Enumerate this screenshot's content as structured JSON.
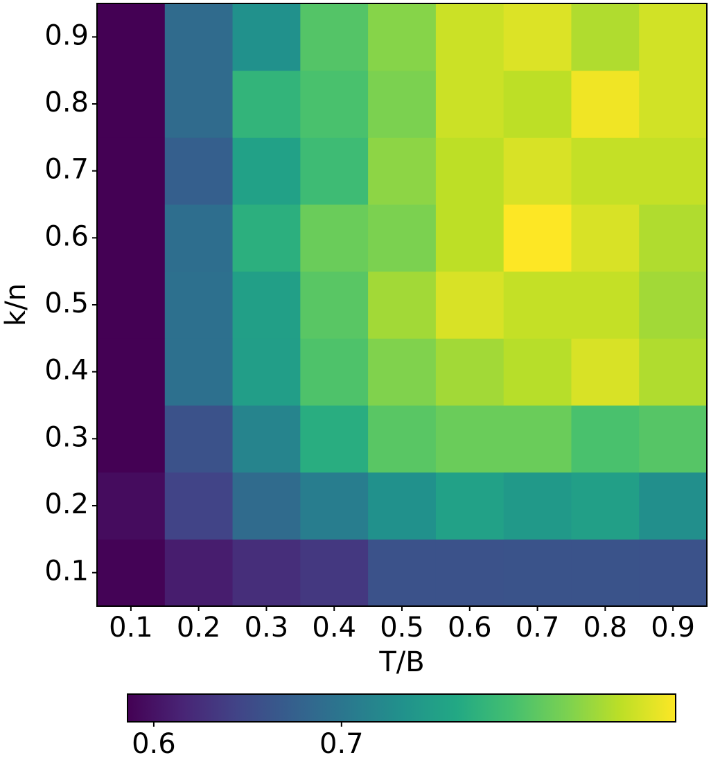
{
  "chart_data": {
    "type": "heatmap",
    "x_label": "T/B",
    "y_label": "k/n",
    "x": [
      0.1,
      0.2,
      0.3,
      0.4,
      0.5,
      0.6,
      0.7,
      0.8,
      0.9
    ],
    "y": [
      0.1,
      0.2,
      0.3,
      0.4,
      0.5,
      0.6,
      0.7,
      0.8,
      0.9
    ],
    "values": [
      [
        0.588,
        0.609,
        0.624,
        0.633,
        0.659,
        0.659,
        0.661,
        0.661,
        0.659
      ],
      [
        0.595,
        0.644,
        0.688,
        0.709,
        0.732,
        0.752,
        0.742,
        0.75,
        0.73
      ],
      [
        0.586,
        0.659,
        0.717,
        0.767,
        0.802,
        0.811,
        0.811,
        0.793,
        0.8
      ],
      [
        0.586,
        0.694,
        0.748,
        0.796,
        0.822,
        0.837,
        0.846,
        0.861,
        0.843
      ],
      [
        0.586,
        0.694,
        0.75,
        0.802,
        0.837,
        0.861,
        0.852,
        0.852,
        0.837
      ],
      [
        0.586,
        0.691,
        0.77,
        0.811,
        0.82,
        0.849,
        0.878,
        0.861,
        0.843
      ],
      [
        0.586,
        0.674,
        0.752,
        0.785,
        0.828,
        0.849,
        0.861,
        0.852,
        0.852
      ],
      [
        0.586,
        0.688,
        0.776,
        0.793,
        0.82,
        0.855,
        0.849,
        0.872,
        0.858
      ],
      [
        0.586,
        0.688,
        0.732,
        0.799,
        0.825,
        0.855,
        0.863,
        0.843,
        0.858
      ]
    ],
    "colormap": "viridis",
    "colorbar_lim": [
      0.586,
      0.878
    ],
    "colorbar_ticks": [
      0.6,
      0.7
    ]
  }
}
